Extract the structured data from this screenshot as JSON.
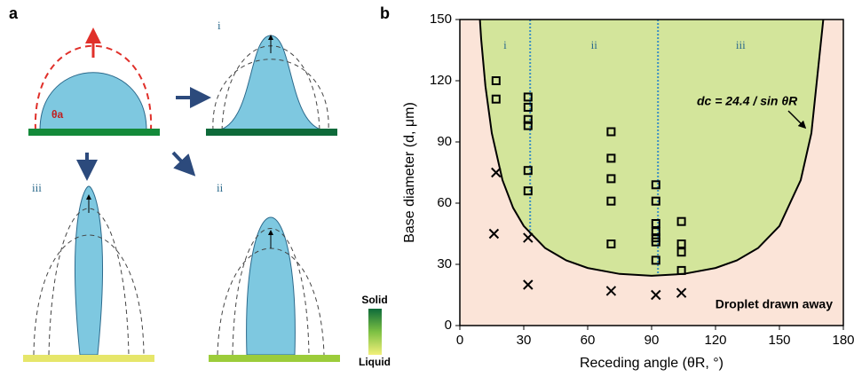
{
  "panel_a": {
    "label": "a",
    "sub_labels": [
      "i",
      "ii",
      "iii"
    ],
    "angle_label": "θa",
    "scale_top": "Solid",
    "scale_bottom": "Liquid"
  },
  "chart_data": {
    "type": "scatter",
    "panel_label": "b",
    "x_label": "Receding angle (θR, °)",
    "y_label": "Base diameter (d, μm)",
    "xlim": [
      0,
      180
    ],
    "ylim": [
      0,
      150
    ],
    "xticks": [
      0,
      30,
      60,
      90,
      120,
      150,
      180
    ],
    "yticks": [
      0,
      30,
      60,
      90,
      120,
      150
    ],
    "background": "#fbe4d8",
    "region_color": "#d3e59b",
    "dividers": [
      33,
      93
    ],
    "divider_color": "#3b8fc4",
    "region_labels": [
      "i",
      "ii",
      "iii"
    ],
    "curve": {
      "color": "#000000",
      "x": [
        9.4,
        10,
        12,
        15,
        20,
        25,
        30,
        40,
        50,
        60,
        75,
        90,
        105,
        120,
        130,
        140,
        150,
        160,
        165,
        170.6
      ],
      "values": [
        150,
        140.5,
        117.4,
        94.3,
        71.3,
        57.7,
        48.8,
        38,
        31.9,
        28.2,
        25.3,
        24.4,
        25.3,
        28.2,
        31.9,
        38,
        48.8,
        71.3,
        94.3,
        150
      ]
    },
    "series": [
      {
        "marker": "square",
        "color": "#000000",
        "x": [
          17,
          17,
          32,
          32,
          32,
          32,
          32,
          32,
          71,
          71,
          71,
          71,
          71,
          92,
          92,
          92,
          92,
          92,
          92,
          92,
          104,
          104,
          104,
          104
        ],
        "values": [
          120,
          111,
          112,
          107,
          101,
          98,
          76,
          66,
          95,
          82,
          72,
          61,
          40,
          69,
          61,
          50,
          46,
          43,
          41,
          32,
          51,
          40,
          36,
          27
        ]
      },
      {
        "marker": "x",
        "color": "#000000",
        "x": [
          17,
          16,
          32,
          32,
          71,
          92,
          104
        ],
        "values": [
          75,
          45,
          43,
          20,
          17,
          15,
          16
        ]
      }
    ],
    "annotations": [
      "dc = 24.4 / sin θR",
      "Droplet drawn away"
    ]
  }
}
